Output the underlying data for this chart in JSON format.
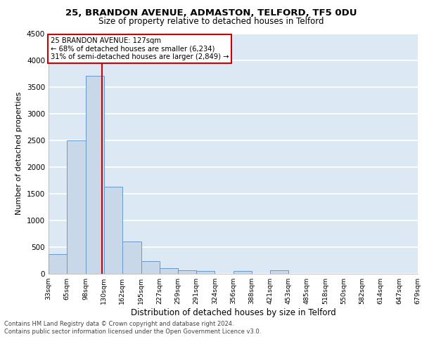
{
  "title1": "25, BRANDON AVENUE, ADMASTON, TELFORD, TF5 0DU",
  "title2": "Size of property relative to detached houses in Telford",
  "xlabel": "Distribution of detached houses by size in Telford",
  "ylabel": "Number of detached properties",
  "bins": [
    33,
    65,
    98,
    130,
    162,
    195,
    227,
    259,
    291,
    324,
    356,
    388,
    421,
    453,
    485,
    518,
    550,
    582,
    614,
    647,
    679
  ],
  "counts": [
    370,
    2500,
    3700,
    1630,
    600,
    240,
    100,
    60,
    50,
    0,
    50,
    0,
    60,
    0,
    0,
    0,
    0,
    0,
    0,
    0
  ],
  "bar_color": "#c8d8e8",
  "bar_edge_color": "#6699cc",
  "vline_x": 127,
  "vline_color": "#cc0000",
  "annotation_text": "25 BRANDON AVENUE: 127sqm\n← 68% of detached houses are smaller (6,234)\n31% of semi-detached houses are larger (2,849) →",
  "annotation_box_color": "white",
  "annotation_box_edge_color": "#cc0000",
  "ylim": [
    0,
    4500
  ],
  "yticks": [
    0,
    500,
    1000,
    1500,
    2000,
    2500,
    3000,
    3500,
    4000,
    4500
  ],
  "tick_labels": [
    "33sqm",
    "65sqm",
    "98sqm",
    "130sqm",
    "162sqm",
    "195sqm",
    "227sqm",
    "259sqm",
    "291sqm",
    "324sqm",
    "356sqm",
    "388sqm",
    "421sqm",
    "453sqm",
    "485sqm",
    "518sqm",
    "550sqm",
    "582sqm",
    "614sqm",
    "647sqm",
    "679sqm"
  ],
  "footer_text": "Contains HM Land Registry data © Crown copyright and database right 2024.\nContains public sector information licensed under the Open Government Licence v3.0.",
  "bg_color": "#dce8f4",
  "grid_color": "white"
}
